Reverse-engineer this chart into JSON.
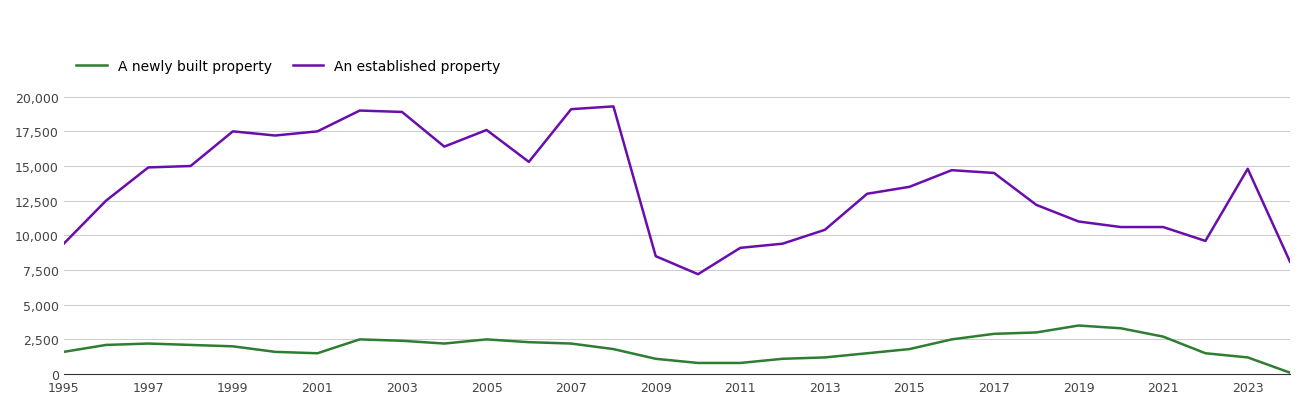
{
  "years": [
    1995,
    1996,
    1997,
    1998,
    1999,
    2000,
    2001,
    2002,
    2003,
    2004,
    2005,
    2006,
    2007,
    2008,
    2009,
    2010,
    2011,
    2012,
    2013,
    2014,
    2015,
    2016,
    2017,
    2018,
    2019,
    2020,
    2021,
    2022,
    2023,
    2024
  ],
  "newly_built": [
    1600,
    2100,
    2200,
    2100,
    2000,
    1600,
    1500,
    2500,
    2400,
    2200,
    2500,
    2300,
    2200,
    1800,
    1100,
    800,
    800,
    1100,
    1200,
    1500,
    1800,
    2500,
    2900,
    3000,
    3500,
    3300,
    2700,
    1500,
    1200,
    100
  ],
  "established": [
    9400,
    12500,
    14900,
    15000,
    17500,
    17200,
    17500,
    19000,
    18900,
    16400,
    17600,
    15300,
    19100,
    19300,
    8500,
    7200,
    9100,
    9400,
    10400,
    13000,
    13500,
    14700,
    14500,
    12200,
    11000,
    10600,
    10600,
    9600,
    14800,
    8100
  ],
  "newly_built_color": "#2e7d32",
  "established_color": "#6a0dad",
  "newly_built_label": "A newly built property",
  "established_label": "An established property",
  "ylim": [
    0,
    20000
  ],
  "yticks": [
    0,
    2500,
    5000,
    7500,
    10000,
    12500,
    15000,
    17500,
    20000
  ],
  "xticks": [
    1995,
    1997,
    1999,
    2001,
    2003,
    2005,
    2007,
    2009,
    2011,
    2013,
    2015,
    2017,
    2019,
    2021,
    2023
  ],
  "background_color": "#ffffff",
  "grid_color": "#cccccc",
  "line_width": 1.8
}
